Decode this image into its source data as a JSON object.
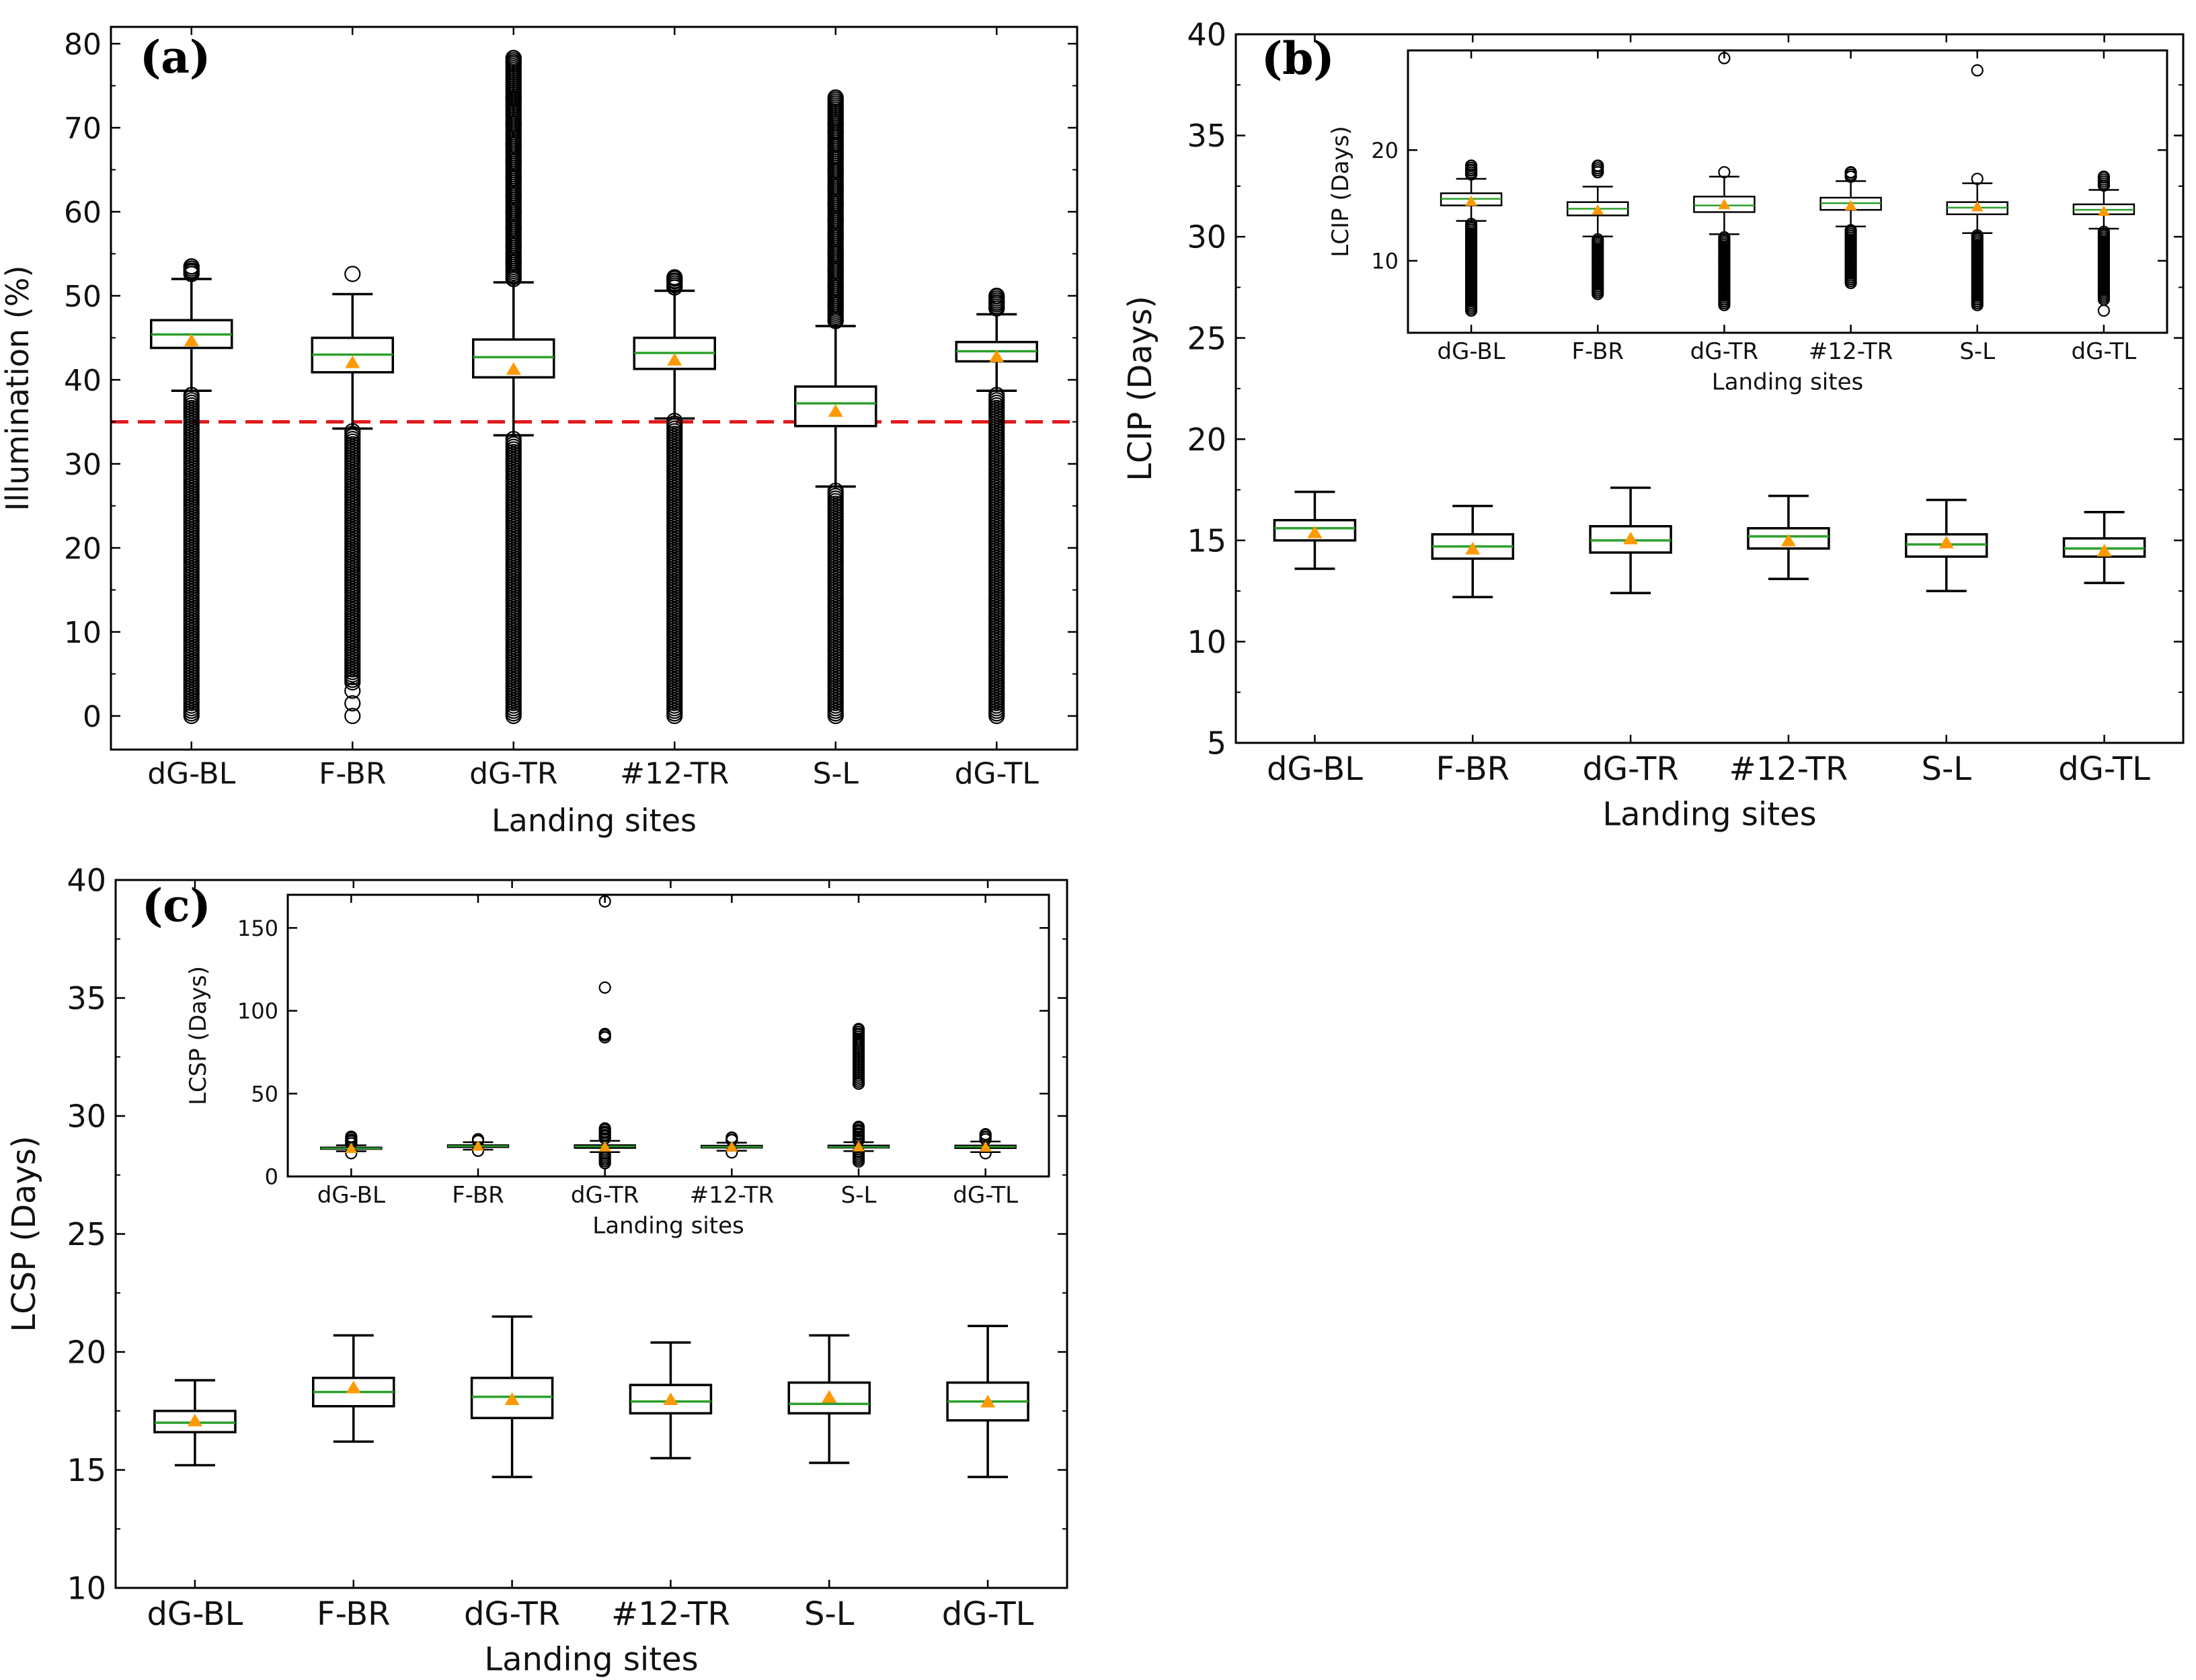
{
  "colors": {
    "box": "#000000",
    "median": "#2ca02c",
    "mean": "#ff9900",
    "threshold": "#e31a1c",
    "outlier": "#000000"
  },
  "chart_data": [
    {
      "id": "a",
      "type": "box",
      "panel_label": "(a)",
      "title": "",
      "xlabel": "Landing sites",
      "ylabel": "Illumination (%)",
      "categories": [
        "dG-BL",
        "F-BR",
        "dG-TR",
        "#12-TR",
        "S-L",
        "dG-TL"
      ],
      "ylim": [
        -4,
        82
      ],
      "yticks": [
        0,
        10,
        20,
        30,
        40,
        50,
        60,
        70,
        80
      ],
      "threshold": 35,
      "boxes": [
        {
          "whislo": 38.7,
          "q1": 43.8,
          "med": 45.4,
          "q3": 47.1,
          "whishi": 52.0,
          "mean": 44.7,
          "outliers_high": [
            52.6,
            53.0,
            53.5
          ],
          "outlier_low_range": [
            0,
            38.5
          ]
        },
        {
          "whislo": 34.2,
          "q1": 40.9,
          "med": 43.0,
          "q3": 45.0,
          "whishi": 50.2,
          "mean": 42.1,
          "outliers_high": [
            52.6
          ],
          "outlier_low_range": [
            4,
            34.0
          ],
          "outliers_extra": [
            0,
            1.5,
            3.0
          ]
        },
        {
          "whislo": 33.4,
          "q1": 40.3,
          "med": 42.7,
          "q3": 44.8,
          "whishi": 51.6,
          "mean": 41.3,
          "outliers_high": [
            52.0,
            54.0,
            56.0,
            58.0,
            60.0,
            62.0,
            64.0,
            66.0,
            68.0,
            70.5,
            73.5,
            77.8,
            78.3
          ],
          "outlier_low_range": [
            0,
            33.2
          ]
        },
        {
          "whislo": 35.4,
          "q1": 41.3,
          "med": 43.2,
          "q3": 45.0,
          "whishi": 50.6,
          "mean": 42.4,
          "outliers_high": [
            51.0,
            51.8,
            52.2
          ],
          "outlier_low_range": [
            0,
            35.2
          ]
        },
        {
          "whislo": 27.3,
          "q1": 34.5,
          "med": 37.2,
          "q3": 39.2,
          "whishi": 46.4,
          "mean": 36.3,
          "outliers_high": [
            47.0,
            49.0,
            51.0,
            53.0,
            55.0,
            57.0,
            59.0,
            61.0,
            63.0,
            65.0,
            66.5,
            68.0,
            69.5,
            70.5,
            73.6
          ],
          "outlier_low_range": [
            0,
            27.0
          ]
        },
        {
          "whislo": 38.7,
          "q1": 42.2,
          "med": 43.4,
          "q3": 44.5,
          "whishi": 47.8,
          "mean": 42.8,
          "outliers_high": [
            48.5,
            49.2,
            50.0
          ],
          "outlier_low_range": [
            0,
            38.5
          ]
        }
      ]
    },
    {
      "id": "b",
      "type": "box",
      "panel_label": "(b)",
      "title": "",
      "xlabel": "Landing sites",
      "ylabel": "LCIP (Days)",
      "categories": [
        "dG-BL",
        "F-BR",
        "dG-TR",
        "#12-TR",
        "S-L",
        "dG-TL"
      ],
      "ylim": [
        5,
        40
      ],
      "yticks": [
        5,
        10,
        15,
        20,
        25,
        30,
        35,
        40
      ],
      "boxes": [
        {
          "whislo": 13.6,
          "q1": 15.0,
          "med": 15.6,
          "q3": 16.0,
          "whishi": 17.4,
          "mean": 15.4
        },
        {
          "whislo": 12.2,
          "q1": 14.1,
          "med": 14.7,
          "q3": 15.3,
          "whishi": 16.7,
          "mean": 14.6
        },
        {
          "whislo": 12.4,
          "q1": 14.4,
          "med": 15.0,
          "q3": 15.7,
          "whishi": 17.6,
          "mean": 15.1
        },
        {
          "whislo": 13.1,
          "q1": 14.6,
          "med": 15.2,
          "q3": 15.6,
          "whishi": 17.2,
          "mean": 15.0
        },
        {
          "whislo": 12.5,
          "q1": 14.2,
          "med": 14.8,
          "q3": 15.3,
          "whishi": 17.0,
          "mean": 14.9
        },
        {
          "whislo": 12.9,
          "q1": 14.2,
          "med": 14.6,
          "q3": 15.1,
          "whishi": 16.4,
          "mean": 14.5
        }
      ],
      "inset": {
        "xlabel": "Landing sites",
        "ylabel": "LCIP (Days)",
        "ylim": [
          3.5,
          29
        ],
        "yticks": [
          10,
          20
        ],
        "boxes": [
          {
            "whislo": 13.6,
            "q1": 15.0,
            "med": 15.6,
            "q3": 16.1,
            "whishi": 17.4,
            "mean": 15.4,
            "outliers_high": [
              17.8,
              18.2,
              18.6
            ],
            "outlier_low_range": [
              5.5,
              13.4
            ]
          },
          {
            "whislo": 12.2,
            "q1": 14.1,
            "med": 14.7,
            "q3": 15.3,
            "whishi": 16.7,
            "mean": 14.6,
            "outliers_high": [
              18.0,
              18.6
            ],
            "outlier_low_range": [
              7.0,
              12.0
            ]
          },
          {
            "whislo": 12.4,
            "q1": 14.4,
            "med": 15.0,
            "q3": 15.8,
            "whishi": 17.6,
            "mean": 15.1,
            "outliers_high": [
              18.0,
              28.3
            ],
            "outlier_low_range": [
              6.0,
              12.2
            ]
          },
          {
            "whislo": 13.1,
            "q1": 14.6,
            "med": 15.2,
            "q3": 15.7,
            "whishi": 17.2,
            "mean": 15.0,
            "outliers_high": [
              17.6,
              18.0
            ],
            "outlier_low_range": [
              8.0,
              12.9
            ]
          },
          {
            "whislo": 12.5,
            "q1": 14.2,
            "med": 14.8,
            "q3": 15.3,
            "whishi": 17.0,
            "mean": 14.9,
            "outliers_high": [
              17.4,
              27.2
            ],
            "outlier_low_range": [
              6.0,
              12.3
            ]
          },
          {
            "whislo": 12.9,
            "q1": 14.2,
            "med": 14.6,
            "q3": 15.1,
            "whishi": 16.4,
            "mean": 14.5,
            "outliers_high": [
              16.8,
              17.6
            ],
            "outlier_low_range": [
              6.5,
              12.7
            ],
            "outliers_extra": [
              5.5
            ]
          }
        ]
      }
    },
    {
      "id": "c",
      "type": "box",
      "panel_label": "(c)",
      "title": "",
      "xlabel": "Landing sites",
      "ylabel": "LCSP (Days)",
      "categories": [
        "dG-BL",
        "F-BR",
        "dG-TR",
        "#12-TR",
        "S-L",
        "dG-TL"
      ],
      "ylim": [
        10,
        40
      ],
      "yticks": [
        10,
        15,
        20,
        25,
        30,
        35,
        40
      ],
      "boxes": [
        {
          "whislo": 15.2,
          "q1": 16.6,
          "med": 17.0,
          "q3": 17.5,
          "whishi": 18.8,
          "mean": 17.1
        },
        {
          "whislo": 16.2,
          "q1": 17.7,
          "med": 18.3,
          "q3": 18.9,
          "whishi": 20.7,
          "mean": 18.5
        },
        {
          "whislo": 14.7,
          "q1": 17.2,
          "med": 18.1,
          "q3": 18.9,
          "whishi": 21.5,
          "mean": 18.0
        },
        {
          "whislo": 15.5,
          "q1": 17.4,
          "med": 17.9,
          "q3": 18.6,
          "whishi": 20.4,
          "mean": 18.0
        },
        {
          "whislo": 15.3,
          "q1": 17.4,
          "med": 17.8,
          "q3": 18.7,
          "whishi": 20.7,
          "mean": 18.1
        },
        {
          "whislo": 14.7,
          "q1": 17.1,
          "med": 17.9,
          "q3": 18.7,
          "whishi": 21.1,
          "mean": 17.9
        }
      ],
      "inset": {
        "xlabel": "Landing sites",
        "ylabel": "LCSP (Days)",
        "ylim": [
          0,
          170
        ],
        "yticks": [
          0,
          50,
          100,
          150
        ],
        "boxes": [
          {
            "whislo": 15.2,
            "q1": 16.6,
            "med": 17.0,
            "q3": 17.5,
            "whishi": 18.8,
            "mean": 17.1,
            "outliers_high": [
              20.0,
              22.0,
              24.0
            ],
            "outlier_low_range": [
              14.0,
              15.0
            ]
          },
          {
            "whislo": 16.2,
            "q1": 17.7,
            "med": 18.3,
            "q3": 18.9,
            "whishi": 20.7,
            "mean": 18.5,
            "outliers_high": [
              21.5,
              22.5
            ],
            "outlier_low_range": [
              15.5,
              16.0
            ]
          },
          {
            "whislo": 14.7,
            "q1": 17.2,
            "med": 18.1,
            "q3": 18.9,
            "whishi": 21.5,
            "mean": 18.0,
            "outliers_high": [
              23.0,
              25.0,
              27.0,
              29.0,
              84.0,
              86.0,
              114.0,
              166.0
            ],
            "outlier_low_range": [
              8.0,
              14.5
            ]
          },
          {
            "whislo": 15.5,
            "q1": 17.4,
            "med": 17.9,
            "q3": 18.6,
            "whishi": 20.4,
            "mean": 18.0,
            "outliers_high": [
              22.0,
              23.5
            ],
            "outlier_low_range": [
              14.5,
              15.3
            ]
          },
          {
            "whislo": 15.3,
            "q1": 17.4,
            "med": 17.8,
            "q3": 18.7,
            "whishi": 20.7,
            "mean": 18.1,
            "outliers_high": [
              22.0,
              24.0,
              26.0,
              28.0,
              30.0,
              56.0,
              78.0,
              82.0,
              86.0,
              89.0
            ],
            "outlier_low_range": [
              9.0,
              15.0
            ]
          },
          {
            "whislo": 14.7,
            "q1": 17.1,
            "med": 17.9,
            "q3": 18.7,
            "whishi": 21.1,
            "mean": 17.9,
            "outliers_high": [
              22.5,
              24.0,
              25.5
            ],
            "outlier_low_range": [
              14.0,
              14.5
            ]
          }
        ]
      }
    }
  ]
}
